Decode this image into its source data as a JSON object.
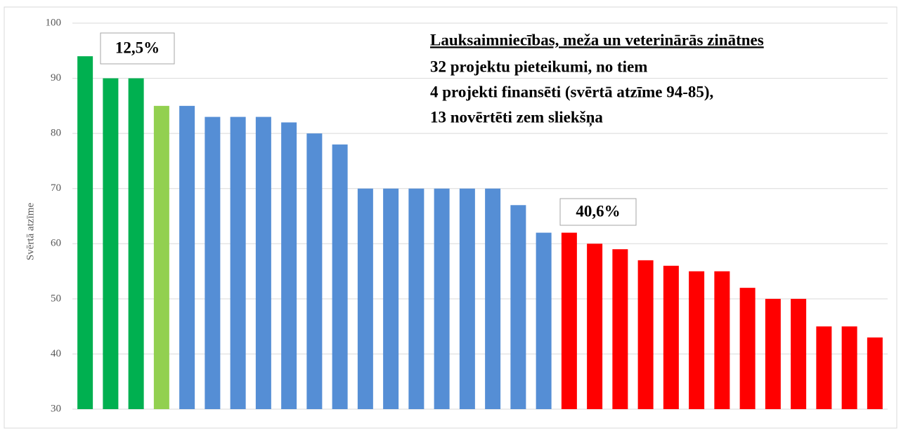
{
  "chart_data": {
    "type": "bar",
    "title": "Lauksaimniecības, meža un veterinārās zinātnes",
    "subtitle_lines": [
      "32 projektu pieteikumi, no tiem",
      "4 projekti finansēti (svērtā atzīme 94-85),",
      "13 novērtēti zem sliekšņa"
    ],
    "ylabel": "Svērtā atzīme",
    "annotations": [
      "12,5%",
      "40,6%"
    ],
    "values": [
      94,
      90,
      90,
      85,
      85,
      83,
      83,
      83,
      82,
      80,
      78,
      70,
      70,
      70,
      70,
      70,
      70,
      67,
      62,
      62,
      60,
      59,
      57,
      56,
      55,
      55,
      52,
      50,
      50,
      45,
      45,
      43
    ],
    "colors": [
      "#00b050",
      "#00b050",
      "#00b050",
      "#92d050",
      "#558ed5",
      "#558ed5",
      "#558ed5",
      "#558ed5",
      "#558ed5",
      "#558ed5",
      "#558ed5",
      "#558ed5",
      "#558ed5",
      "#558ed5",
      "#558ed5",
      "#558ed5",
      "#558ed5",
      "#558ed5",
      "#558ed5",
      "#ff0000",
      "#ff0000",
      "#ff0000",
      "#ff0000",
      "#ff0000",
      "#ff0000",
      "#ff0000",
      "#ff0000",
      "#ff0000",
      "#ff0000",
      "#ff0000",
      "#ff0000",
      "#ff0000"
    ],
    "ylim": [
      30,
      100
    ],
    "yticks": [
      30,
      40,
      50,
      60,
      70,
      80,
      90,
      100
    ],
    "grid": true
  }
}
